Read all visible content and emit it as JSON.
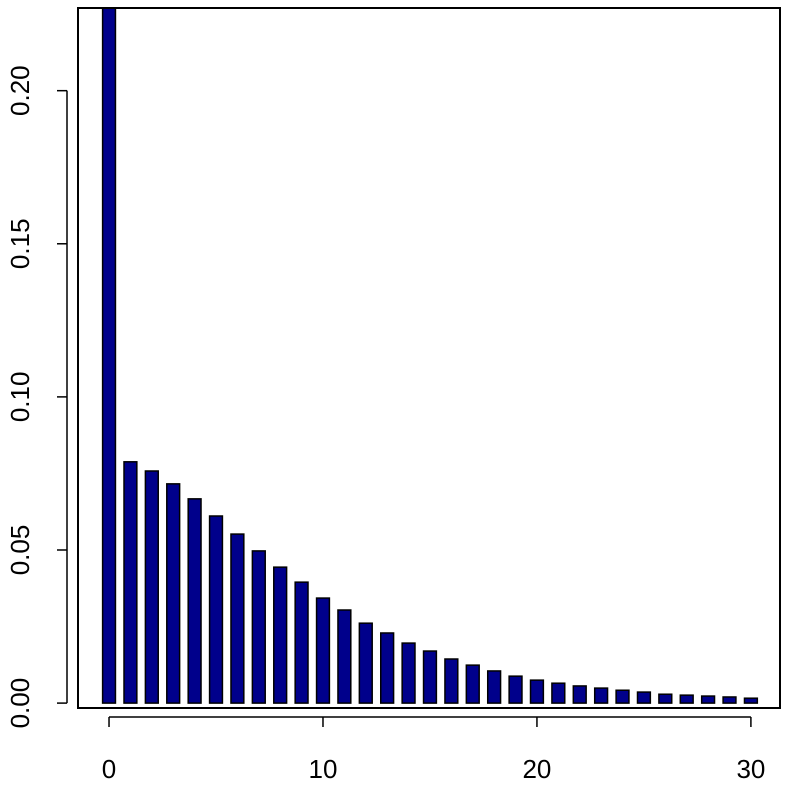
{
  "chart_data": {
    "type": "bar",
    "x": [
      0,
      1,
      2,
      3,
      4,
      5,
      6,
      7,
      8,
      9,
      10,
      11,
      12,
      13,
      14,
      15,
      16,
      17,
      18,
      19,
      20,
      21,
      22,
      23,
      24,
      25,
      26,
      27,
      28,
      29,
      30
    ],
    "values": [
      0.23,
      0.0788,
      0.0758,
      0.0716,
      0.0667,
      0.0611,
      0.0552,
      0.0497,
      0.0444,
      0.0395,
      0.0343,
      0.0304,
      0.0261,
      0.0229,
      0.0196,
      0.017,
      0.0144,
      0.0124,
      0.0105,
      0.0088,
      0.0075,
      0.0065,
      0.0056,
      0.0049,
      0.0042,
      0.0036,
      0.0029,
      0.0026,
      0.0023,
      0.002,
      0.0016
    ],
    "color": "#00008b",
    "xlim": [
      -1.45,
      31.36
    ],
    "xticks": [
      0,
      10,
      20,
      30
    ],
    "ylim": [
      -0.0016,
      0.227
    ],
    "yticks": [
      {
        "value": 0,
        "label": "0.00"
      },
      {
        "value": 0.05,
        "label": "0.05"
      },
      {
        "value": 0.1,
        "label": "0.10"
      },
      {
        "value": 0.15,
        "label": "0.15"
      },
      {
        "value": 0.2,
        "label": "0.20"
      }
    ]
  }
}
